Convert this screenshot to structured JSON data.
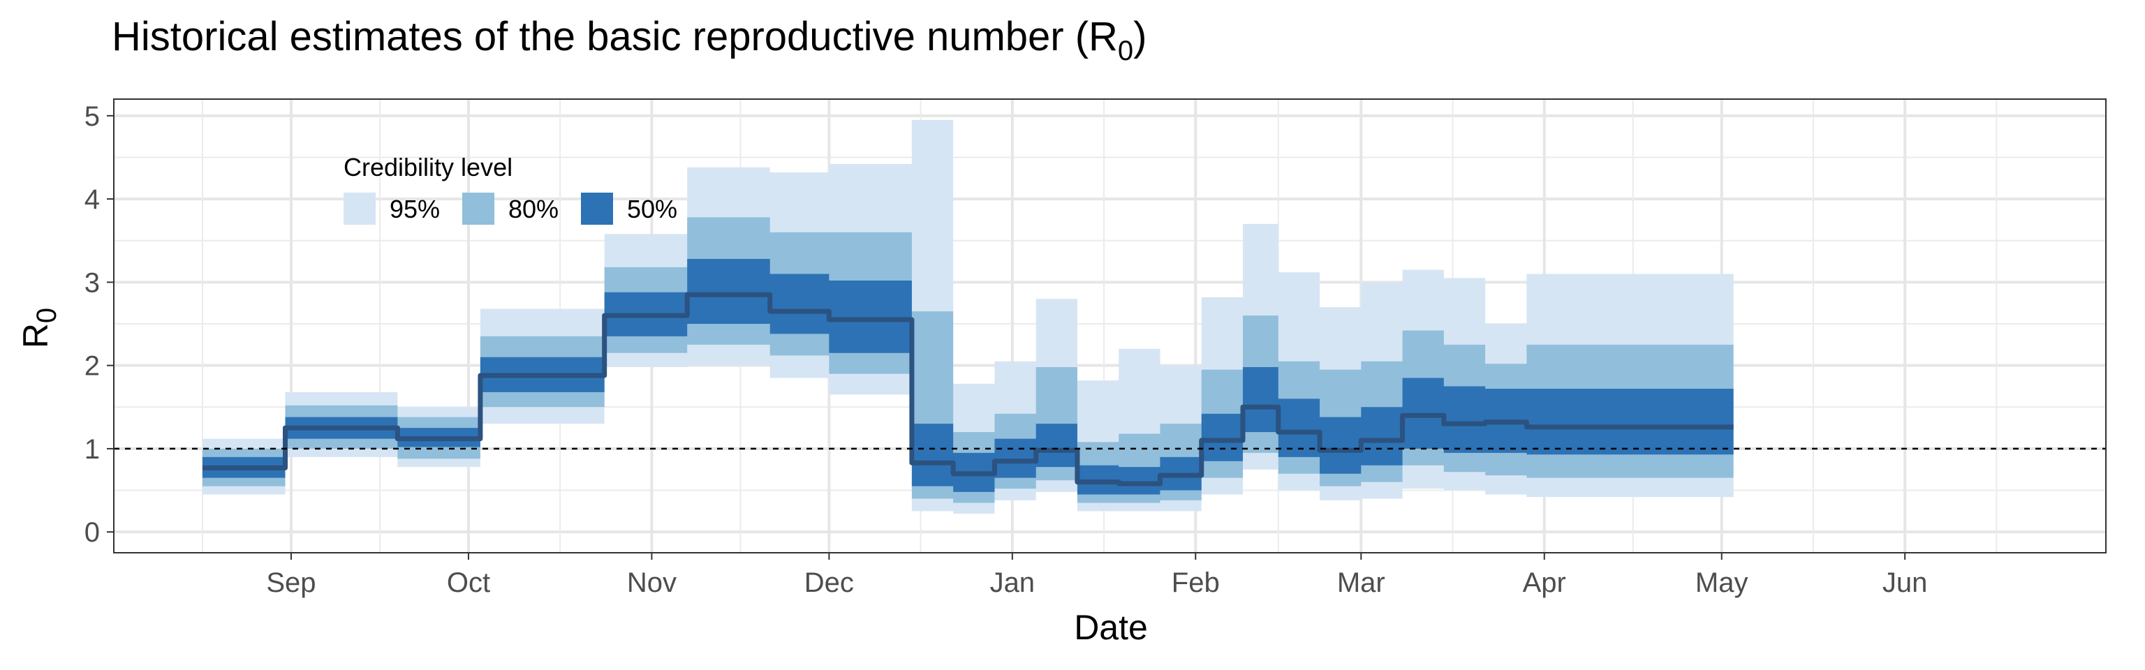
{
  "chart_data": {
    "type": "area",
    "title": {
      "text": "Historical estimates of the basic reproductive number (R",
      "subscript": "0",
      "suffix": ")"
    },
    "xlabel": "Date",
    "ylabel": {
      "text": "R",
      "subscript": "0"
    },
    "ylim": [
      -0.25,
      5.2
    ],
    "y_ticks": [
      0,
      1,
      2,
      3,
      4,
      5
    ],
    "xlim": [
      "2020-08-02",
      "2021-07-05"
    ],
    "x_ticks": [
      {
        "date": "2020-09-01",
        "label": "Sep"
      },
      {
        "date": "2020-10-01",
        "label": "Oct"
      },
      {
        "date": "2020-11-01",
        "label": "Nov"
      },
      {
        "date": "2020-12-01",
        "label": "Dec"
      },
      {
        "date": "2021-01-01",
        "label": "Jan"
      },
      {
        "date": "2021-02-01",
        "label": "Feb"
      },
      {
        "date": "2021-03-01",
        "label": "Mar"
      },
      {
        "date": "2021-04-01",
        "label": "Apr"
      },
      {
        "date": "2021-05-01",
        "label": "May"
      },
      {
        "date": "2021-06-01",
        "label": "Jun"
      }
    ],
    "grid": true,
    "reference_line": 1,
    "legend": {
      "title": "Credibility level",
      "position": "top-left",
      "items": [
        {
          "label": "95%",
          "color": "#d6e5f4"
        },
        {
          "label": "80%",
          "color": "#91bedb"
        },
        {
          "label": "50%",
          "color": "#2d72b5"
        }
      ]
    },
    "median_color": "#2b5280",
    "steps": [
      {
        "start": "2020-08-17",
        "end": "2020-08-31",
        "median": 0.77,
        "lo50": 0.65,
        "hi50": 0.9,
        "lo80": 0.55,
        "hi80": 1.0,
        "lo95": 0.45,
        "hi95": 1.12
      },
      {
        "start": "2020-08-31",
        "end": "2020-09-19",
        "median": 1.25,
        "lo50": 1.12,
        "hi50": 1.38,
        "lo80": 1.0,
        "hi80": 1.52,
        "lo95": 0.9,
        "hi95": 1.68
      },
      {
        "start": "2020-09-19",
        "end": "2020-10-03",
        "median": 1.12,
        "lo50": 1.02,
        "hi50": 1.25,
        "lo80": 0.88,
        "hi80": 1.38,
        "lo95": 0.78,
        "hi95": 1.5
      },
      {
        "start": "2020-10-03",
        "end": "2020-10-24",
        "median": 1.88,
        "lo50": 1.68,
        "hi50": 2.1,
        "lo80": 1.5,
        "hi80": 2.35,
        "lo95": 1.3,
        "hi95": 2.68
      },
      {
        "start": "2020-10-24",
        "end": "2020-11-07",
        "median": 2.6,
        "lo50": 2.35,
        "hi50": 2.88,
        "lo80": 2.15,
        "hi80": 3.18,
        "lo95": 1.98,
        "hi95": 3.58
      },
      {
        "start": "2020-11-07",
        "end": "2020-11-21",
        "median": 2.85,
        "lo50": 2.5,
        "hi50": 3.28,
        "lo80": 2.25,
        "hi80": 3.78,
        "lo95": 2.0,
        "hi95": 4.38
      },
      {
        "start": "2020-11-21",
        "end": "2020-12-01",
        "median": 2.65,
        "lo50": 2.38,
        "hi50": 3.1,
        "lo80": 2.12,
        "hi80": 3.6,
        "lo95": 1.85,
        "hi95": 4.32
      },
      {
        "start": "2020-12-01",
        "end": "2020-12-15",
        "median": 2.55,
        "lo50": 2.15,
        "hi50": 3.02,
        "lo80": 1.9,
        "hi80": 3.6,
        "lo95": 1.65,
        "hi95": 4.42
      },
      {
        "start": "2020-12-15",
        "end": "2020-12-22",
        "median": 0.83,
        "lo50": 0.55,
        "hi50": 1.3,
        "lo80": 0.4,
        "hi80": 2.65,
        "lo95": 0.25,
        "hi95": 4.95
      },
      {
        "start": "2020-12-22",
        "end": "2020-12-29",
        "median": 0.7,
        "lo50": 0.48,
        "hi50": 0.95,
        "lo80": 0.35,
        "hi80": 1.2,
        "lo95": 0.22,
        "hi95": 1.78
      },
      {
        "start": "2020-12-29",
        "end": "2021-01-05",
        "median": 0.85,
        "lo50": 0.65,
        "hi50": 1.12,
        "lo80": 0.52,
        "hi80": 1.42,
        "lo95": 0.38,
        "hi95": 2.05
      },
      {
        "start": "2021-01-05",
        "end": "2021-01-12",
        "median": 0.98,
        "lo50": 0.78,
        "hi50": 1.3,
        "lo80": 0.62,
        "hi80": 1.98,
        "lo95": 0.48,
        "hi95": 2.8
      },
      {
        "start": "2021-01-12",
        "end": "2021-01-19",
        "median": 0.6,
        "lo50": 0.45,
        "hi50": 0.8,
        "lo80": 0.35,
        "hi80": 1.08,
        "lo95": 0.25,
        "hi95": 1.82
      },
      {
        "start": "2021-01-19",
        "end": "2021-01-26",
        "median": 0.58,
        "lo50": 0.45,
        "hi50": 0.78,
        "lo80": 0.35,
        "hi80": 1.18,
        "lo95": 0.25,
        "hi95": 2.2
      },
      {
        "start": "2021-01-26",
        "end": "2021-02-02",
        "median": 0.68,
        "lo50": 0.5,
        "hi50": 0.9,
        "lo80": 0.38,
        "hi80": 1.3,
        "lo95": 0.25,
        "hi95": 2.0
      },
      {
        "start": "2021-02-02",
        "end": "2021-02-09",
        "median": 1.1,
        "lo50": 0.85,
        "hi50": 1.42,
        "lo80": 0.65,
        "hi80": 1.95,
        "lo95": 0.45,
        "hi95": 2.82
      },
      {
        "start": "2021-02-09",
        "end": "2021-02-15",
        "median": 1.5,
        "lo50": 1.2,
        "hi50": 1.98,
        "lo80": 0.95,
        "hi80": 2.6,
        "lo95": 0.75,
        "hi95": 3.7
      },
      {
        "start": "2021-02-15",
        "end": "2021-02-22",
        "median": 1.2,
        "lo50": 0.9,
        "hi50": 1.6,
        "lo80": 0.7,
        "hi80": 2.05,
        "lo95": 0.5,
        "hi95": 3.12
      },
      {
        "start": "2021-02-22",
        "end": "2021-03-01",
        "median": 0.98,
        "lo50": 0.7,
        "hi50": 1.38,
        "lo80": 0.55,
        "hi80": 1.95,
        "lo95": 0.38,
        "hi95": 2.7
      },
      {
        "start": "2021-03-01",
        "end": "2021-03-08",
        "median": 1.1,
        "lo50": 0.8,
        "hi50": 1.5,
        "lo80": 0.6,
        "hi80": 2.05,
        "lo95": 0.4,
        "hi95": 3.0
      },
      {
        "start": "2021-03-08",
        "end": "2021-03-15",
        "median": 1.4,
        "lo50": 1.0,
        "hi50": 1.85,
        "lo80": 0.8,
        "hi80": 2.42,
        "lo95": 0.52,
        "hi95": 3.15
      },
      {
        "start": "2021-03-15",
        "end": "2021-03-22",
        "median": 1.3,
        "lo50": 0.95,
        "hi50": 1.75,
        "lo80": 0.72,
        "hi80": 2.25,
        "lo95": 0.5,
        "hi95": 3.05
      },
      {
        "start": "2021-03-22",
        "end": "2021-03-29",
        "median": 1.32,
        "lo50": 0.95,
        "hi50": 1.72,
        "lo80": 0.68,
        "hi80": 2.02,
        "lo95": 0.45,
        "hi95": 2.5
      },
      {
        "start": "2021-03-29",
        "end": "2021-05-03",
        "median": 1.26,
        "lo50": 0.93,
        "hi50": 1.72,
        "lo80": 0.65,
        "hi80": 2.25,
        "lo95": 0.42,
        "hi95": 3.1
      }
    ]
  }
}
